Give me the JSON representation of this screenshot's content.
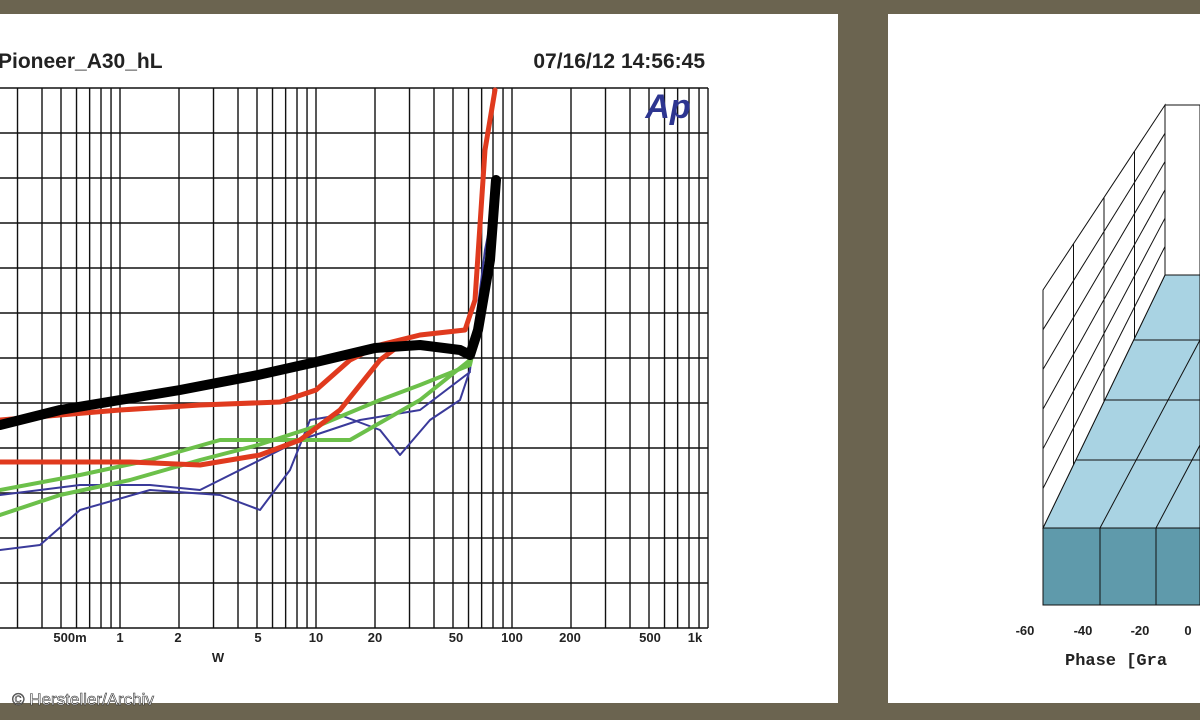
{
  "left_chart": {
    "title": "Pioneer_A30_hL",
    "timestamp": "07/16/12 14:56:45",
    "logo": "Ap",
    "x_ticks": [
      "500m",
      "1",
      "2",
      "5",
      "10",
      "20",
      "50",
      "100",
      "200",
      "500",
      "1k"
    ],
    "x_axis_label": "W"
  },
  "right_chart": {
    "x_ticks": [
      "-60",
      "-40",
      "-20",
      "0"
    ],
    "x_axis_label": "Phase [Gra"
  },
  "credit": "© Hersteller/Archiv"
}
